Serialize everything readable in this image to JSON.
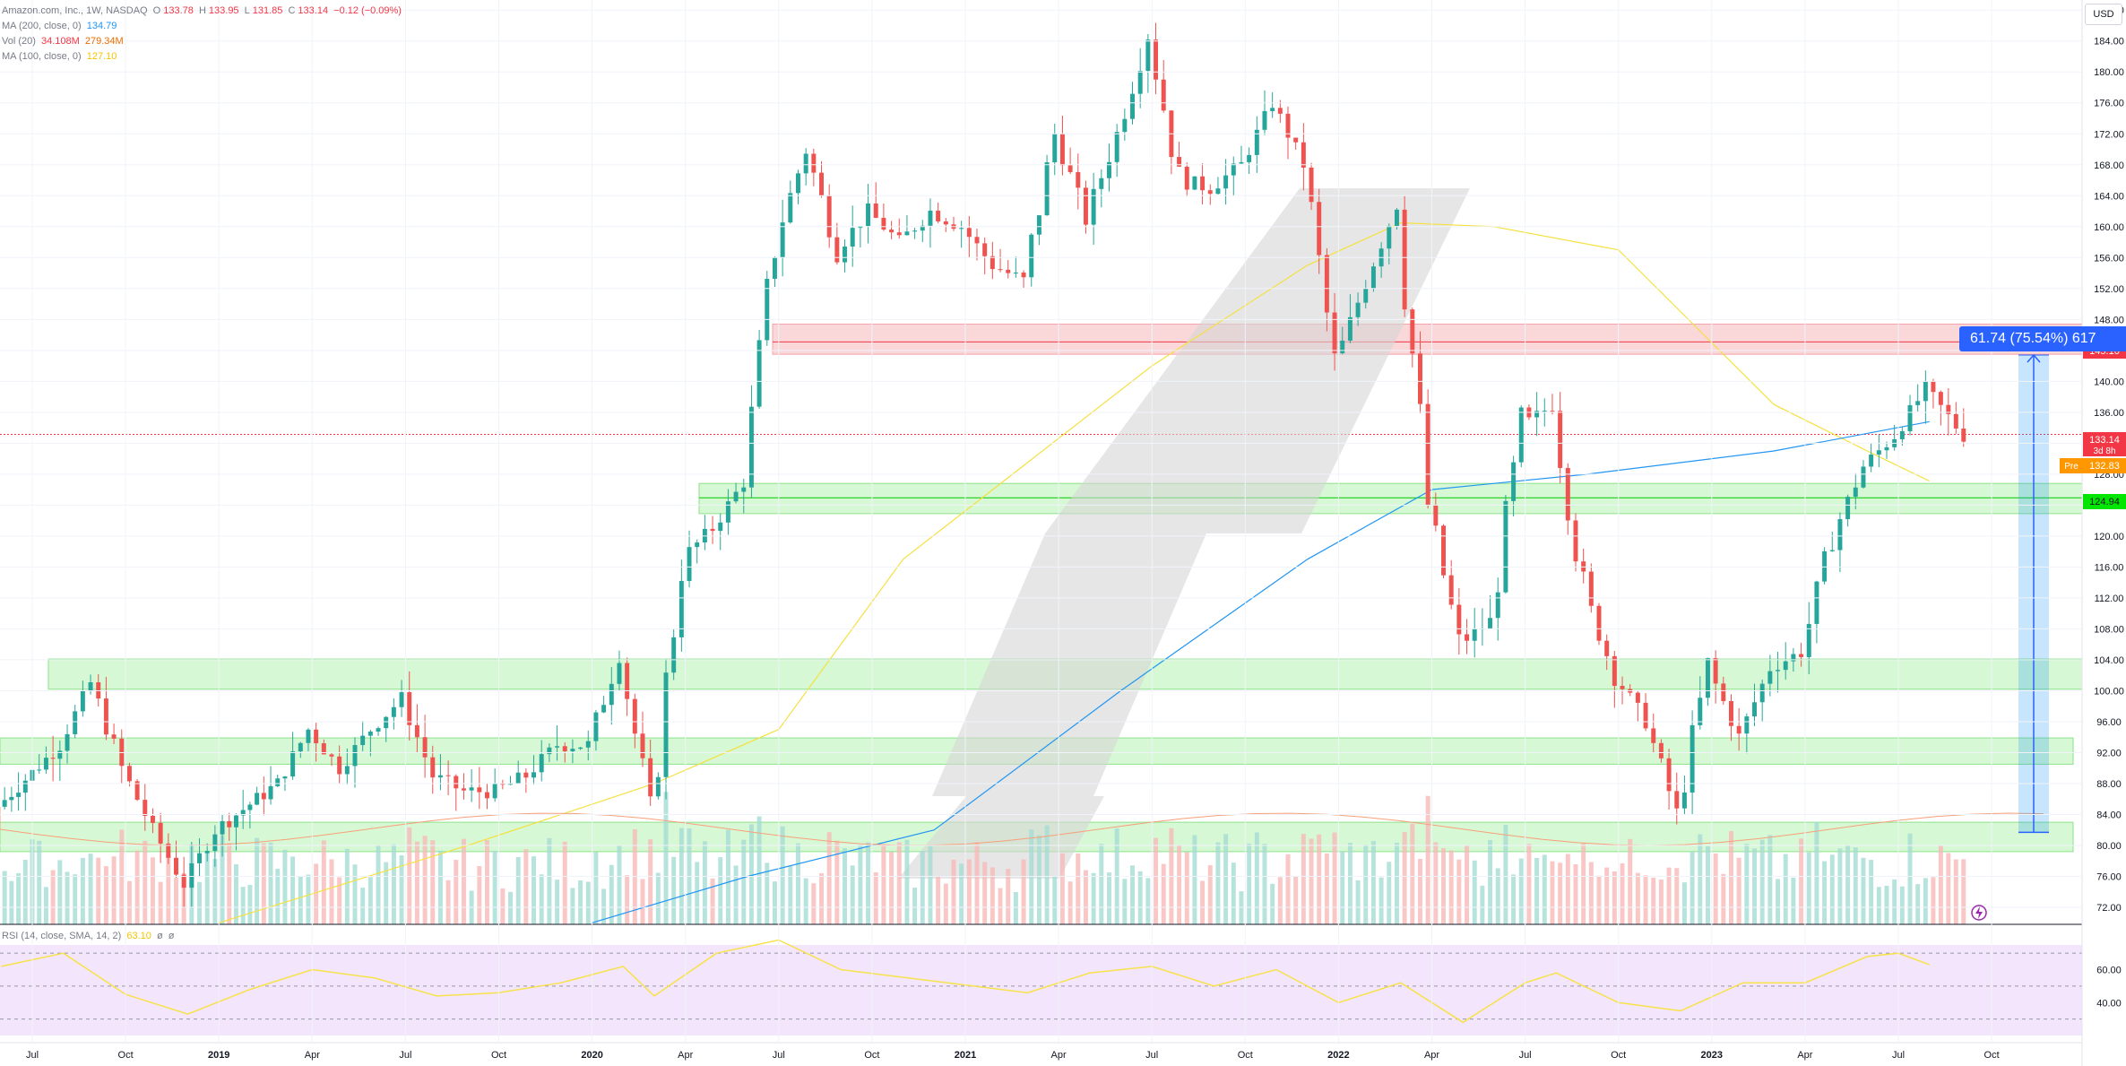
{
  "legend": {
    "symbol": "Amazon.com, Inc., 1W, NASDAQ",
    "open_label": "O",
    "open": "133.78",
    "high_label": "H",
    "high": "133.95",
    "low_label": "L",
    "low": "131.85",
    "close_label": "C",
    "close": "133.14",
    "change": "−0.12 (−0.09%)",
    "ma200_label": "MA (200, close, 0)",
    "ma200_value": "134.79",
    "vol_label": "Vol (20)",
    "vol_value": "34.108M",
    "vol_ma": "279.34M",
    "ma100_label": "MA (100, close, 0)",
    "ma100_value": "127.10",
    "rsi_label": "RSI (14, close, SMA, 14, 2)",
    "rsi_value": "63.10"
  },
  "currency": "USD",
  "measure": {
    "label": "61.74 (75.54%) 617"
  },
  "price_tags": {
    "resistance": "145.10",
    "last": "133.14",
    "countdown": "3d 8h",
    "pre_label": "Pre",
    "pre": "132.83",
    "support": "124.94"
  },
  "colors": {
    "up": "#26a69a",
    "down": "#ef5350",
    "ma200": "#2196f3",
    "ma100": "#f5e142",
    "vol_ma": "#f7a07a",
    "rsi_line": "#f7e24a",
    "rsi_bg": "#f3e5fc",
    "red_zone": "#f8c9cc",
    "green_zone": "#c9f5c6"
  },
  "chart_data": {
    "type": "candlestick",
    "title": "Amazon.com, Inc., 1W, NASDAQ",
    "x_ticks": [
      "Jul",
      "Oct",
      "2019",
      "Apr",
      "Jul",
      "Oct",
      "2020",
      "Apr",
      "Jul",
      "Oct",
      "2021",
      "Apr",
      "Jul",
      "Oct",
      "2022",
      "Apr",
      "Jul",
      "Oct",
      "2023",
      "Apr",
      "Jul",
      "Oct"
    ],
    "y_ticks": [
      72,
      76,
      80,
      84,
      88,
      92,
      96,
      100,
      104,
      108,
      112,
      116,
      120,
      124,
      128,
      132,
      136,
      140,
      144,
      148,
      152,
      156,
      160,
      164,
      168,
      172,
      176,
      180,
      184,
      188
    ],
    "ylim": [
      69.8,
      189.3
    ],
    "price_series": [
      {
        "date": "2018-06",
        "close": 85
      },
      {
        "date": "2018-08",
        "close": 93
      },
      {
        "date": "2018-09",
        "close": 101
      },
      {
        "date": "2018-10",
        "close": 90
      },
      {
        "date": "2018-11",
        "close": 82
      },
      {
        "date": "2018-12",
        "close": 75
      },
      {
        "date": "2019-01",
        "close": 82
      },
      {
        "date": "2019-03",
        "close": 88
      },
      {
        "date": "2019-04",
        "close": 95
      },
      {
        "date": "2019-05",
        "close": 90
      },
      {
        "date": "2019-06",
        "close": 95
      },
      {
        "date": "2019-07",
        "close": 99
      },
      {
        "date": "2019-08",
        "close": 89
      },
      {
        "date": "2019-09",
        "close": 87
      },
      {
        "date": "2019-10",
        "close": 87
      },
      {
        "date": "2019-11",
        "close": 89
      },
      {
        "date": "2019-12",
        "close": 93
      },
      {
        "date": "2020-01",
        "close": 93
      },
      {
        "date": "2020-02",
        "close": 105
      },
      {
        "date": "2020-03",
        "close": 84
      },
      {
        "date": "2020-04",
        "close": 117
      },
      {
        "date": "2020-05",
        "close": 121
      },
      {
        "date": "2020-06",
        "close": 127
      },
      {
        "date": "2020-07",
        "close": 158
      },
      {
        "date": "2020-08",
        "close": 170
      },
      {
        "date": "2020-09",
        "close": 157
      },
      {
        "date": "2020-10",
        "close": 162
      },
      {
        "date": "2020-11",
        "close": 158
      },
      {
        "date": "2020-12",
        "close": 162
      },
      {
        "date": "2021-01",
        "close": 160
      },
      {
        "date": "2021-02",
        "close": 155
      },
      {
        "date": "2021-03",
        "close": 153
      },
      {
        "date": "2021-04",
        "close": 172
      },
      {
        "date": "2021-05",
        "close": 161
      },
      {
        "date": "2021-06",
        "close": 172
      },
      {
        "date": "2021-07",
        "close": 185
      },
      {
        "date": "2021-08",
        "close": 166
      },
      {
        "date": "2021-09",
        "close": 165
      },
      {
        "date": "2021-10",
        "close": 168
      },
      {
        "date": "2021-11",
        "close": 176
      },
      {
        "date": "2021-12",
        "close": 168
      },
      {
        "date": "2022-01",
        "close": 142
      },
      {
        "date": "2022-02",
        "close": 153
      },
      {
        "date": "2022-03",
        "close": 163
      },
      {
        "date": "2022-04",
        "close": 124
      },
      {
        "date": "2022-05",
        "close": 106
      },
      {
        "date": "2022-06",
        "close": 109
      },
      {
        "date": "2022-07",
        "close": 134
      },
      {
        "date": "2022-08",
        "close": 137
      },
      {
        "date": "2022-09",
        "close": 113
      },
      {
        "date": "2022-10",
        "close": 102
      },
      {
        "date": "2022-11",
        "close": 96
      },
      {
        "date": "2022-12",
        "close": 84
      },
      {
        "date": "2023-01",
        "close": 103
      },
      {
        "date": "2023-02",
        "close": 94
      },
      {
        "date": "2023-03",
        "close": 103
      },
      {
        "date": "2023-04",
        "close": 105
      },
      {
        "date": "2023-05",
        "close": 120
      },
      {
        "date": "2023-06",
        "close": 129
      },
      {
        "date": "2023-07",
        "close": 133
      },
      {
        "date": "2023-08",
        "close": 139
      },
      {
        "date": "2023-08",
        "close": 133
      }
    ],
    "ma200_series": [
      {
        "date": "2020-01",
        "value": 70
      },
      {
        "date": "2020-06",
        "value": 76
      },
      {
        "date": "2020-12",
        "value": 82
      },
      {
        "date": "2021-06",
        "value": 100
      },
      {
        "date": "2021-12",
        "value": 117
      },
      {
        "date": "2022-04",
        "value": 126
      },
      {
        "date": "2022-09",
        "value": 128
      },
      {
        "date": "2023-03",
        "value": 131
      },
      {
        "date": "2023-08",
        "value": 134.79
      }
    ],
    "ma100_series": [
      {
        "date": "2019-01",
        "value": 70
      },
      {
        "date": "2019-09",
        "value": 80
      },
      {
        "date": "2020-03",
        "value": 88
      },
      {
        "date": "2020-07",
        "value": 95
      },
      {
        "date": "2020-11",
        "value": 117
      },
      {
        "date": "2021-07",
        "value": 142
      },
      {
        "date": "2021-12",
        "value": 155
      },
      {
        "date": "2022-03",
        "value": 160.5
      },
      {
        "date": "2022-06",
        "value": 160
      },
      {
        "date": "2022-10",
        "value": 157
      },
      {
        "date": "2023-03",
        "value": 137
      },
      {
        "date": "2023-06",
        "value": 131
      },
      {
        "date": "2023-08",
        "value": 127.1
      }
    ],
    "zones": [
      {
        "color": "red",
        "from": 143.5,
        "to": 147.4
      },
      {
        "color": "green",
        "from": 122.9,
        "to": 126.8
      },
      {
        "color": "green",
        "from": 100.2,
        "to": 104.1
      },
      {
        "color": "green",
        "from": 90.5,
        "to": 93.9
      },
      {
        "color": "green",
        "from": 79.2,
        "to": 83.0
      }
    ],
    "lines": [
      145.1,
      124.94,
      133.14
    ],
    "measure": {
      "from": 81.7,
      "to": 143.4,
      "change": 61.74,
      "percent": 75.54
    },
    "volume": {
      "last": "34.108M",
      "ma": "279.34M"
    },
    "rsi": {
      "levels": [
        70,
        50,
        30
      ],
      "y_ticks": [
        40,
        60
      ],
      "last": 63.1,
      "series": [
        {
          "date": "2018-06",
          "value": 62
        },
        {
          "date": "2018-08",
          "value": 70
        },
        {
          "date": "2018-10",
          "value": 45
        },
        {
          "date": "2018-12",
          "value": 33
        },
        {
          "date": "2019-02",
          "value": 48
        },
        {
          "date": "2019-04",
          "value": 60
        },
        {
          "date": "2019-06",
          "value": 55
        },
        {
          "date": "2019-08",
          "value": 44
        },
        {
          "date": "2019-10",
          "value": 46
        },
        {
          "date": "2019-12",
          "value": 52
        },
        {
          "date": "2020-02",
          "value": 62
        },
        {
          "date": "2020-03",
          "value": 44
        },
        {
          "date": "2020-05",
          "value": 70
        },
        {
          "date": "2020-07",
          "value": 78
        },
        {
          "date": "2020-09",
          "value": 60
        },
        {
          "date": "2020-12",
          "value": 53
        },
        {
          "date": "2021-03",
          "value": 46
        },
        {
          "date": "2021-05",
          "value": 58
        },
        {
          "date": "2021-07",
          "value": 62
        },
        {
          "date": "2021-09",
          "value": 50
        },
        {
          "date": "2021-11",
          "value": 60
        },
        {
          "date": "2022-01",
          "value": 40
        },
        {
          "date": "2022-03",
          "value": 52
        },
        {
          "date": "2022-05",
          "value": 28
        },
        {
          "date": "2022-07",
          "value": 52
        },
        {
          "date": "2022-08",
          "value": 58
        },
        {
          "date": "2022-10",
          "value": 40
        },
        {
          "date": "2022-12",
          "value": 35
        },
        {
          "date": "2023-02",
          "value": 52
        },
        {
          "date": "2023-04",
          "value": 52
        },
        {
          "date": "2023-06",
          "value": 68
        },
        {
          "date": "2023-07",
          "value": 70
        },
        {
          "date": "2023-08",
          "value": 63.1
        }
      ]
    }
  }
}
